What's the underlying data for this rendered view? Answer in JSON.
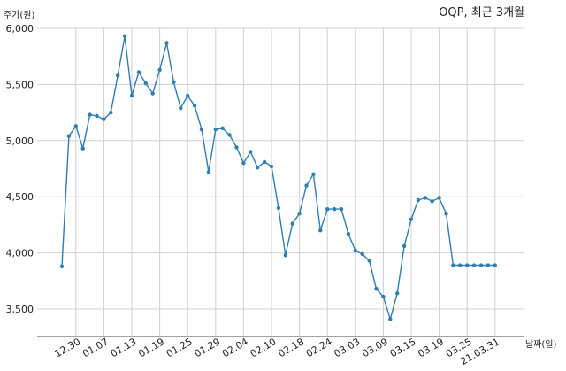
{
  "chart_data": {
    "type": "line",
    "title": "OQP, 최근 3개월",
    "ylabel": "주가(원)",
    "xlabel": "날짜(일)",
    "ylim": [
      3250,
      6000
    ],
    "yticks": [
      3500,
      4000,
      4500,
      5000,
      5500,
      6000
    ],
    "ytick_labels": [
      "3,500",
      "4,000",
      "4,500",
      "5,000",
      "5,500",
      "6,000"
    ],
    "xtick_labels": [
      "12.30",
      "01.07",
      "01.13",
      "01.19",
      "01.25",
      "01.29",
      "02.04",
      "02.10",
      "02.18",
      "02.24",
      "03.03",
      "03.09",
      "03.15",
      "03.19",
      "03.25",
      "21.03.31"
    ],
    "xtick_index": [
      2,
      6,
      10,
      14,
      18,
      22,
      26,
      30,
      34,
      38,
      42,
      46,
      50,
      54,
      58,
      62
    ],
    "grid": true,
    "color": "#2e7db5",
    "series": [
      {
        "values": [
          3880,
          5040,
          5130,
          4930,
          5230,
          5220,
          5190,
          5250,
          5580,
          5930,
          5400,
          5610,
          5510,
          5420,
          5630,
          5870,
          5520,
          5290,
          5400,
          5310,
          5100,
          4720,
          5100,
          5110,
          5050,
          4940,
          4800,
          4900,
          4760,
          4810,
          4770,
          4400,
          3980,
          4260,
          4350,
          4600,
          4700,
          4200,
          4390,
          4390,
          4390,
          4170,
          4020,
          3990,
          3930,
          3680,
          3610,
          3410,
          3640,
          4060,
          4300,
          4470,
          4490,
          4460,
          4490,
          4350,
          3890,
          3890,
          3890,
          3890,
          3890,
          3890,
          3890
        ]
      }
    ]
  }
}
